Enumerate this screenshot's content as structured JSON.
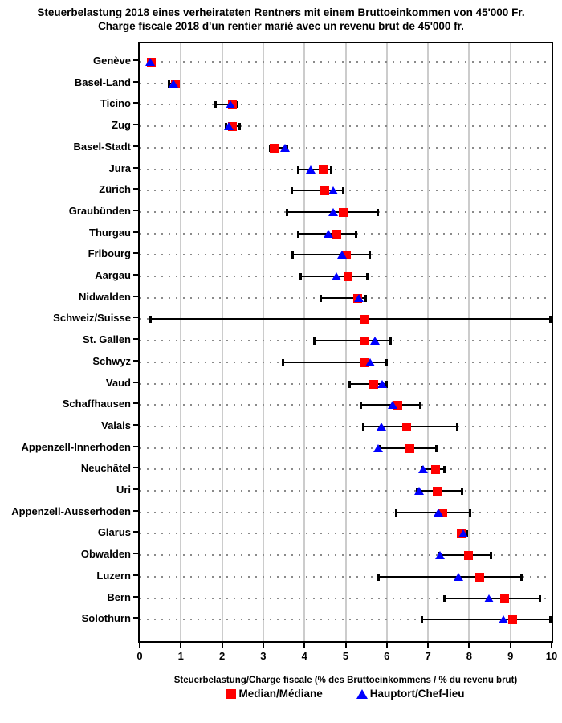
{
  "title": {
    "line1": "Steuerbelastung 2018 eines verheirateten Rentners mit einem Bruttoeinkommen von 45'000 Fr.",
    "line2": "Charge fiscale 2018 d'un rentier marié avec un revenu brut de 45'000 fr."
  },
  "chart_data": {
    "type": "scatter",
    "subtype": "dot-range-with-whiskers",
    "xlabel": "Steuerbelastung/Charge fiscale (% des Bruttoeinkommens / % du revenu brut)",
    "xlim": [
      0,
      10
    ],
    "x_ticks": [
      0,
      1,
      2,
      3,
      4,
      5,
      6,
      7,
      8,
      9,
      10
    ],
    "grid": {
      "vertical_lines_at": [
        1,
        2,
        3,
        4,
        5,
        6,
        7,
        8,
        9
      ],
      "horizontal_dotted_per_row": true
    },
    "legend": [
      {
        "label": "Median/Médiane",
        "marker": "square",
        "color": "#ff0000"
      },
      {
        "label": "Hauptort/Chef-lieu",
        "marker": "triangle",
        "color": "#0000ff"
      }
    ],
    "rows": [
      {
        "canton": "Genève",
        "min": 0.2,
        "hauptort": 0.27,
        "median": 0.29,
        "max": 0.35
      },
      {
        "canton": "Basel-Land",
        "min": 0.72,
        "hauptort": 0.82,
        "median": 0.87,
        "max": 0.95
      },
      {
        "canton": "Ticino",
        "min": 1.85,
        "hauptort": 2.21,
        "median": 2.26,
        "max": 2.35
      },
      {
        "canton": "Zug",
        "min": 2.1,
        "hauptort": 2.17,
        "median": 2.26,
        "max": 2.42
      },
      {
        "canton": "Basel-Stadt",
        "min": 3.17,
        "hauptort": 3.53,
        "median": 3.27,
        "max": 3.58
      },
      {
        "canton": "Jura",
        "min": 3.85,
        "hauptort": 4.17,
        "median": 4.45,
        "max": 4.64
      },
      {
        "canton": "Zürich",
        "min": 3.7,
        "hauptort": 4.71,
        "median": 4.49,
        "max": 4.94
      },
      {
        "canton": "Graubünden",
        "min": 3.57,
        "hauptort": 4.71,
        "median": 4.94,
        "max": 5.77
      },
      {
        "canton": "Thurgau",
        "min": 3.85,
        "hauptort": 4.6,
        "median": 4.79,
        "max": 5.25
      },
      {
        "canton": "Fribourg",
        "min": 3.72,
        "hauptort": 4.93,
        "median": 5.01,
        "max": 5.58
      },
      {
        "canton": "Aargau",
        "min": 3.9,
        "hauptort": 4.78,
        "median": 5.06,
        "max": 5.52
      },
      {
        "canton": "Nidwalden",
        "min": 4.4,
        "hauptort": 5.34,
        "median": 5.3,
        "max": 5.48
      },
      {
        "canton": "Schweiz/Suisse",
        "min": 0.26,
        "hauptort": null,
        "median": 5.45,
        "max": 9.97
      },
      {
        "canton": "St. Gallen",
        "min": 4.24,
        "hauptort": 5.73,
        "median": 5.46,
        "max": 6.09
      },
      {
        "canton": "Schwyz",
        "min": 3.47,
        "hauptort": 5.61,
        "median": 5.46,
        "max": 5.99
      },
      {
        "canton": "Vaud",
        "min": 5.09,
        "hauptort": 5.89,
        "median": 5.69,
        "max": 6.0
      },
      {
        "canton": "Schaffhausen",
        "min": 5.38,
        "hauptort": 6.15,
        "median": 6.26,
        "max": 6.81
      },
      {
        "canton": "Valais",
        "min": 5.43,
        "hauptort": 5.87,
        "median": 6.49,
        "max": 7.7
      },
      {
        "canton": "Appenzell-Innerhoden",
        "min": 5.83,
        "hauptort": 5.8,
        "median": 6.55,
        "max": 7.2
      },
      {
        "canton": "Neuchâtel",
        "min": 6.85,
        "hauptort": 6.9,
        "median": 7.18,
        "max": 7.4
      },
      {
        "canton": "Uri",
        "min": 6.74,
        "hauptort": 6.8,
        "median": 7.23,
        "max": 7.83
      },
      {
        "canton": "Appenzell-Ausserhoden",
        "min": 6.22,
        "hauptort": 7.27,
        "median": 7.36,
        "max": 8.02
      },
      {
        "canton": "Glarus",
        "min": 7.75,
        "hauptort": 7.87,
        "median": 7.81,
        "max": 7.95
      },
      {
        "canton": "Obwalden",
        "min": 7.27,
        "hauptort": 7.3,
        "median": 7.99,
        "max": 8.52
      },
      {
        "canton": "Luzern",
        "min": 5.8,
        "hauptort": 7.75,
        "median": 8.25,
        "max": 9.26
      },
      {
        "canton": "Bern",
        "min": 7.4,
        "hauptort": 8.49,
        "median": 8.86,
        "max": 9.71
      },
      {
        "canton": "Solothurn",
        "min": 6.86,
        "hauptort": 8.84,
        "median": 9.06,
        "max": 9.97
      }
    ]
  },
  "colors": {
    "median_marker": "#ff0000",
    "hauptort_marker": "#0000ff",
    "whisker": "#000000",
    "grid_line": "#cccccc",
    "row_dots": "#8a8a8a",
    "text": "#000000",
    "background": "#ffffff"
  }
}
